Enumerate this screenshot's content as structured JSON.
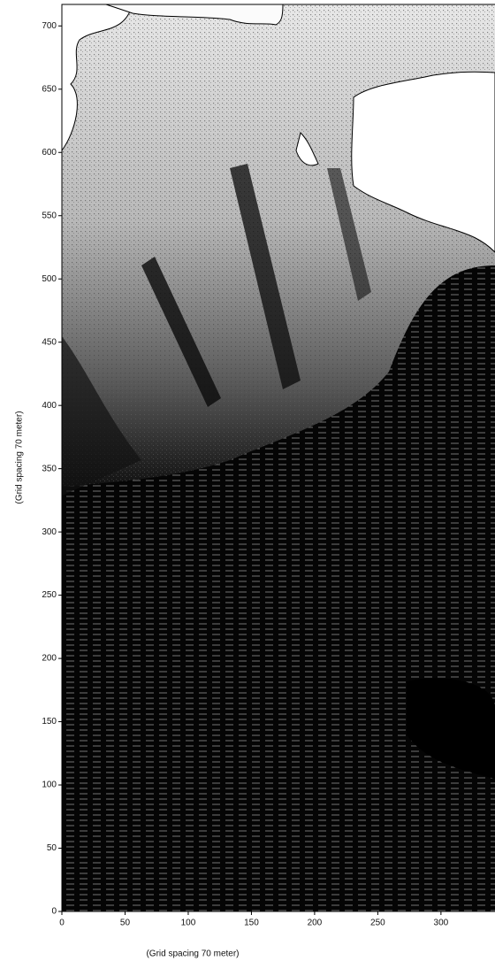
{
  "chart_data": {
    "type": "image",
    "xlabel": "(Grid spacing 70 meter)",
    "ylabel": "(Grid spacing 70 meter)",
    "xlim": [
      0,
      343
    ],
    "ylim": [
      0,
      717
    ],
    "xticks": [
      0,
      50,
      100,
      150,
      200,
      250,
      300
    ],
    "yticks": [
      0,
      50,
      100,
      150,
      200,
      250,
      300,
      350,
      400,
      450,
      500,
      550,
      600,
      650,
      700
    ],
    "grid": false
  }
}
